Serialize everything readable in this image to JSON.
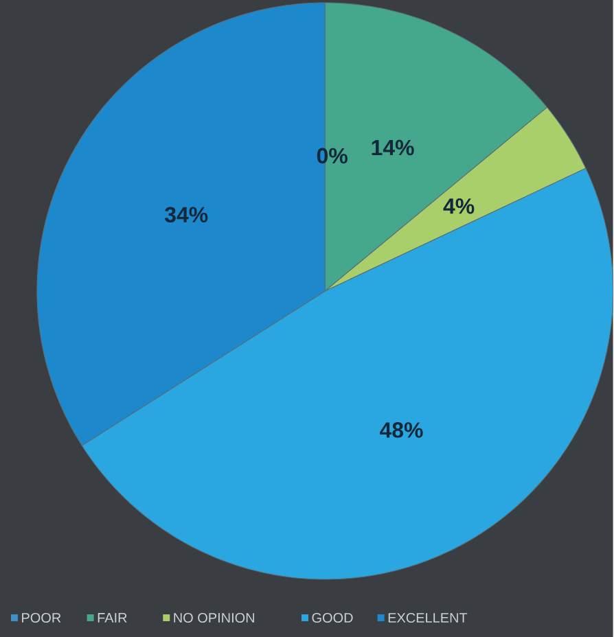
{
  "chart_data": {
    "type": "pie",
    "categories": [
      "POOR",
      "FAIR",
      "NO OPINION",
      "GOOD",
      "EXCELLENT"
    ],
    "values": [
      0,
      14,
      4,
      48,
      34
    ],
    "value_labels": [
      "0%",
      "14%",
      "4%",
      "48%",
      "34%"
    ],
    "colors": [
      "#3f8fc8",
      "#45a88c",
      "#a9cf6b",
      "#2aa7e0",
      "#1e88cc"
    ],
    "legend": "bottom"
  }
}
